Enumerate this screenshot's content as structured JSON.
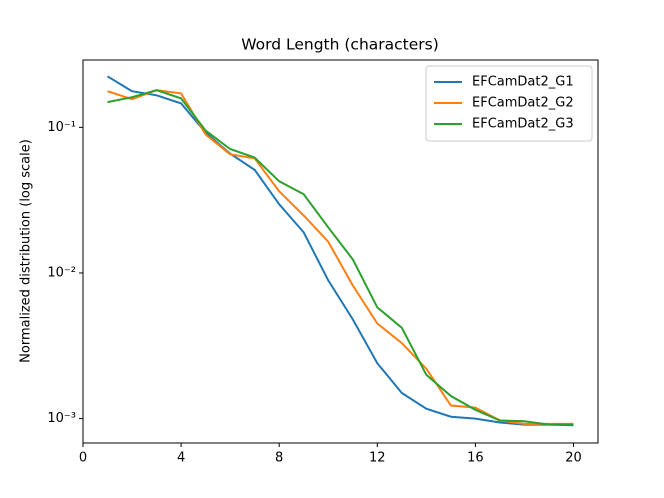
{
  "chart_data": {
    "type": "line",
    "title": "Word Length (characters)",
    "y_label": "Normalized distribution (log scale)",
    "x": [
      1,
      2,
      3,
      4,
      5,
      6,
      7,
      8,
      9,
      10,
      11,
      12,
      13,
      14,
      15,
      16,
      17,
      18,
      19,
      20
    ],
    "series": [
      {
        "name": "EFCamDat2_G1",
        "color": "#1f77b4",
        "values": [
          0.224,
          0.177,
          0.166,
          0.146,
          0.092,
          0.066,
          0.051,
          0.0296,
          0.019,
          0.0089,
          0.0048,
          0.0024,
          0.0015,
          0.00117,
          0.00103,
          0.001,
          0.00094,
          0.00091,
          0.00091,
          0.0009
        ]
      },
      {
        "name": "EFCamDat2_G2",
        "color": "#ff7f0e",
        "values": [
          0.177,
          0.156,
          0.18,
          0.171,
          0.0895,
          0.0653,
          0.0612,
          0.0363,
          0.0248,
          0.0164,
          0.0082,
          0.0045,
          0.0033,
          0.0022,
          0.00123,
          0.00119,
          0.00097,
          0.00092,
          0.00092,
          0.00092
        ]
      },
      {
        "name": "EFCamDat2_G3",
        "color": "#2ca02c",
        "values": [
          0.149,
          0.161,
          0.18,
          0.158,
          0.095,
          0.071,
          0.062,
          0.0426,
          0.0347,
          0.0206,
          0.0124,
          0.0058,
          0.0042,
          0.002,
          0.00143,
          0.00115,
          0.00097,
          0.00096,
          0.00091,
          0.00091
        ]
      }
    ],
    "xlim": [
      0,
      21
    ],
    "xticks": [
      0,
      4,
      8,
      12,
      16,
      20
    ],
    "ylim": [
      0.00068,
      0.29
    ],
    "log_y": true,
    "yticks": [
      {
        "value": 0.001,
        "label": "10⁻³"
      },
      {
        "value": 0.01,
        "label": "10⁻²"
      },
      {
        "value": 0.1,
        "label": "10⁻¹"
      }
    ],
    "legend": "upper right"
  }
}
